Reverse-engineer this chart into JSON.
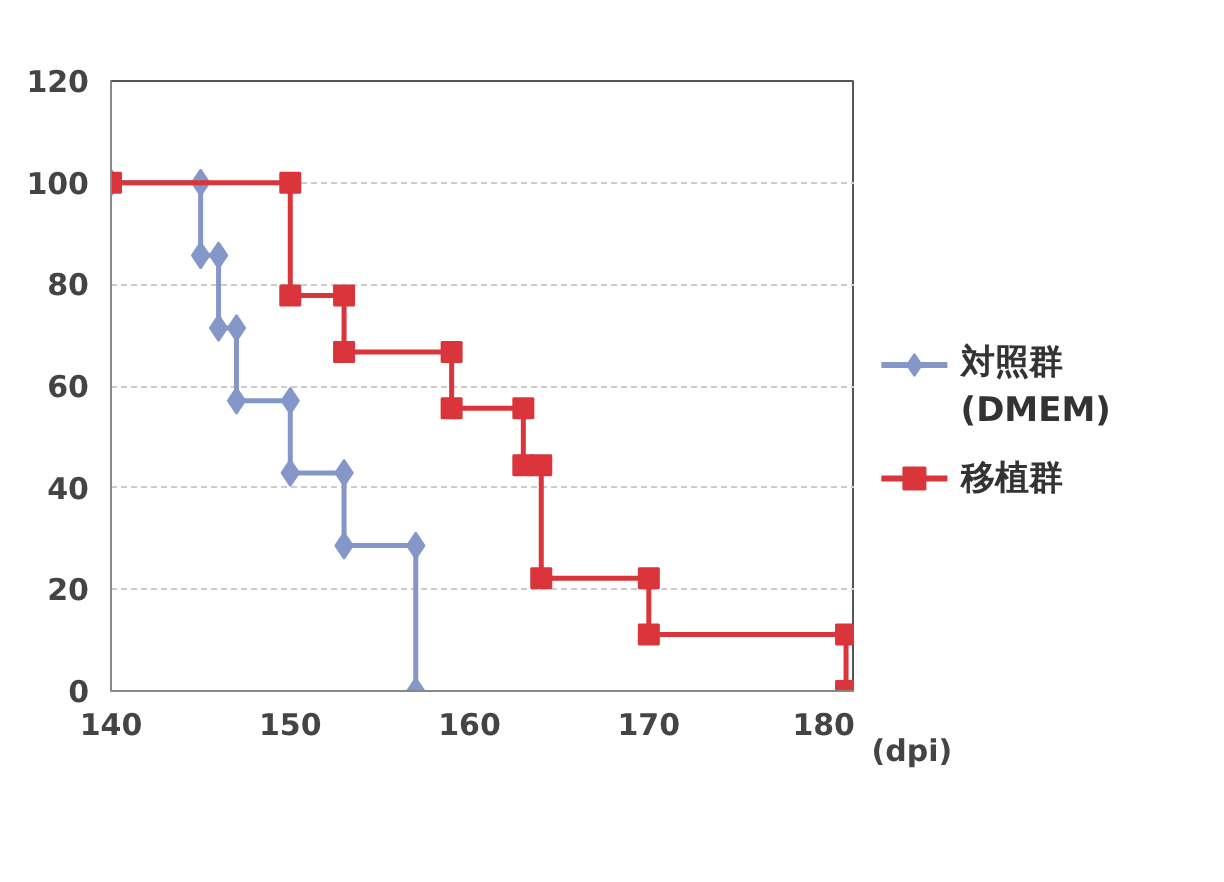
{
  "chart_data": {
    "type": "line",
    "xlabel": "(dpi)",
    "xlim": [
      140,
      181.5
    ],
    "xticks": [
      140,
      150,
      160,
      170,
      180
    ],
    "ylim": [
      0,
      120
    ],
    "yticks": [
      0,
      20,
      40,
      60,
      80,
      100,
      120
    ],
    "grid": "y",
    "legend": "right",
    "marker": "diamond",
    "line_style": "solid",
    "series": [
      {
        "name": "対照群\n(DMEM)",
        "color": "#8497c8",
        "marker": "diamond",
        "x": [
          140,
          145,
          145,
          146,
          146,
          147,
          147,
          150,
          150,
          153,
          153,
          157,
          157
        ],
        "values": [
          100,
          100,
          85.7,
          85.7,
          71.4,
          71.4,
          57.1,
          57.1,
          42.9,
          42.9,
          28.6,
          28.6,
          0
        ]
      },
      {
        "name": "移植群",
        "color": "#d9353b",
        "marker": "square",
        "x": [
          140,
          150,
          150,
          153,
          153,
          159,
          159,
          163,
          163,
          164,
          164,
          170,
          170,
          181,
          181
        ],
        "values": [
          100,
          100,
          77.8,
          77.8,
          66.7,
          66.7,
          55.6,
          55.6,
          44.4,
          44.4,
          22.2,
          22.2,
          11.1,
          11.1,
          0
        ]
      }
    ]
  }
}
